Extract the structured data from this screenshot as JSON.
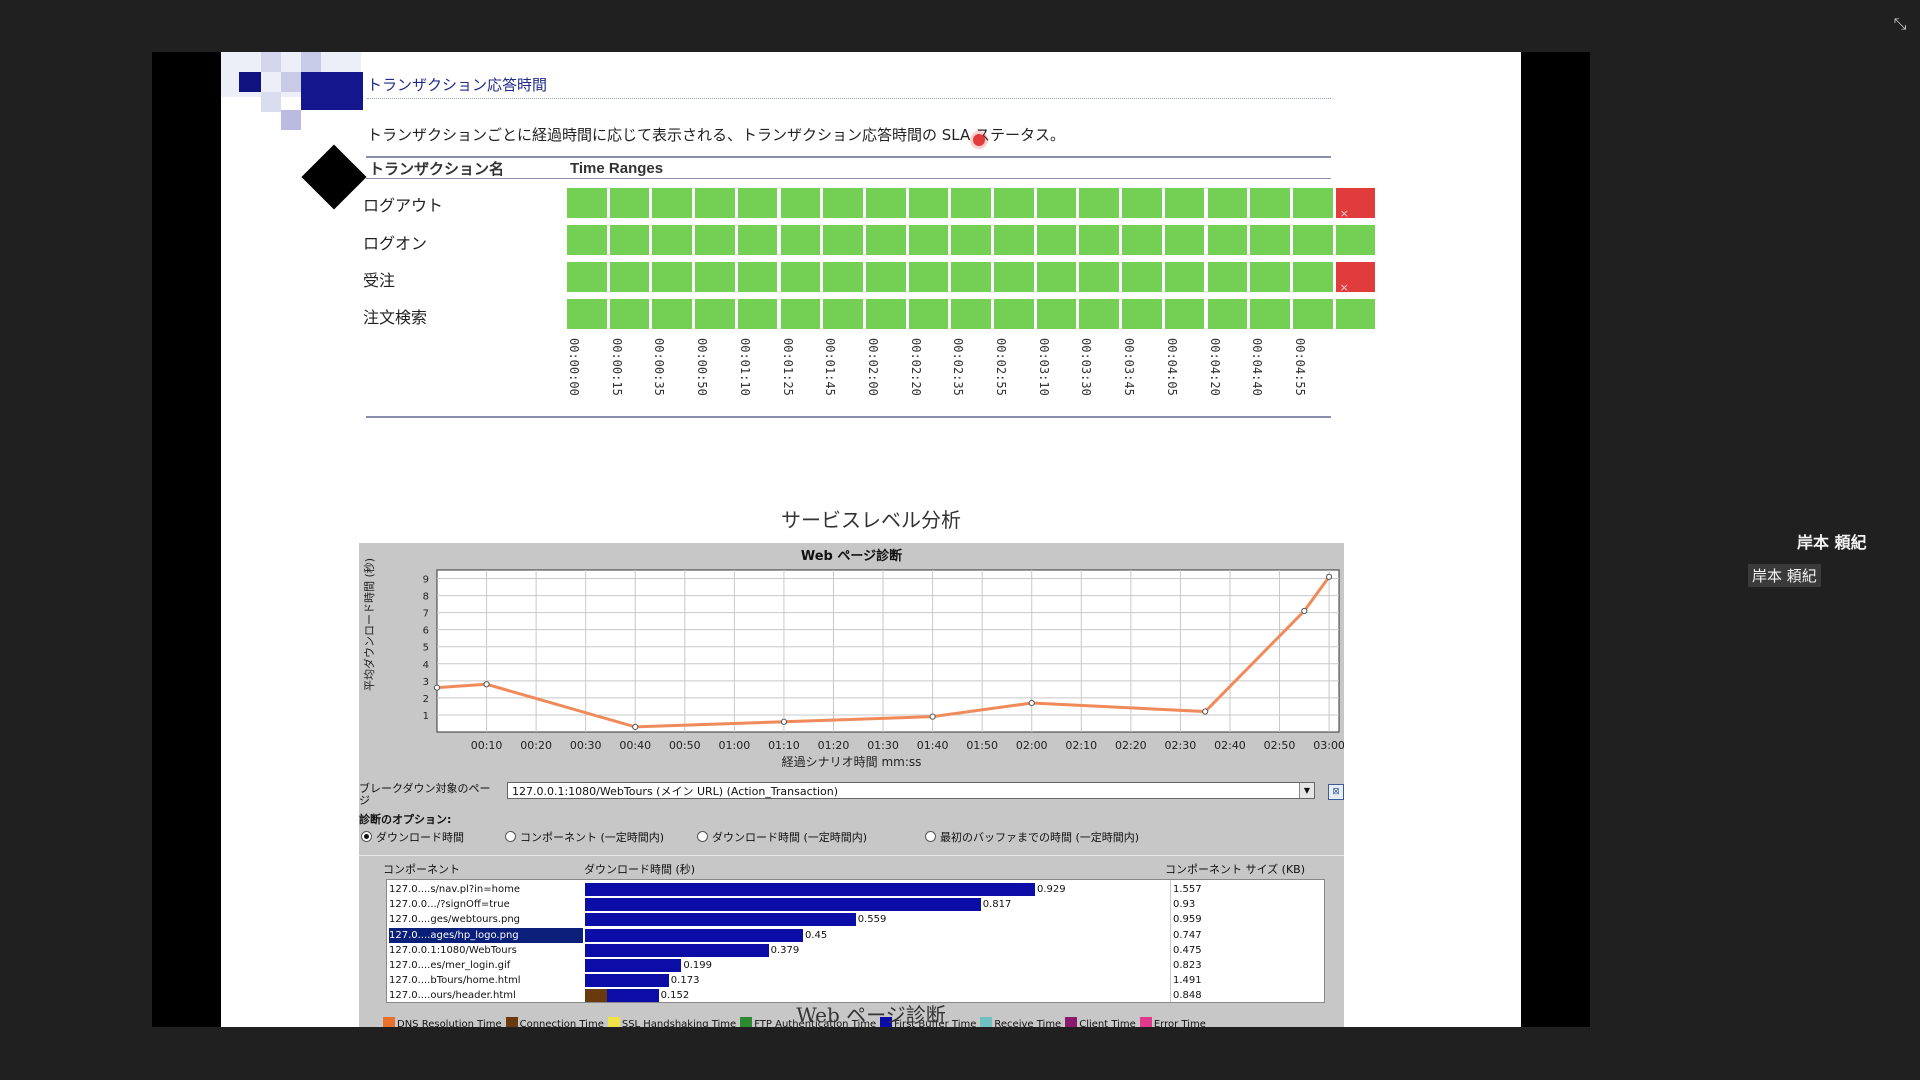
{
  "window": {
    "minimize_icon": "compress-icon",
    "minimize_glyph": "⤡"
  },
  "slide": {
    "title": "トランザクション応答時間",
    "description": "トランザクションごとに経過時間に応じて表示される、トランザクション応答時間の SLA ステータス。",
    "table": {
      "col_transaction": "トランザクション名",
      "col_time_ranges": "Time Ranges",
      "rows": [
        {
          "name": "ログアウト",
          "status": [
            "ok",
            "ok",
            "ok",
            "ok",
            "ok",
            "ok",
            "ok",
            "ok",
            "ok",
            "ok",
            "ok",
            "ok",
            "ok",
            "ok",
            "ok",
            "ok",
            "ok",
            "ok",
            "fail"
          ]
        },
        {
          "name": "ログオン",
          "status": [
            "ok",
            "ok",
            "ok",
            "ok",
            "ok",
            "ok",
            "ok",
            "ok",
            "ok",
            "ok",
            "ok",
            "ok",
            "ok",
            "ok",
            "ok",
            "ok",
            "ok",
            "ok",
            "ok"
          ]
        },
        {
          "name": "受注",
          "status": [
            "ok",
            "ok",
            "ok",
            "ok",
            "ok",
            "ok",
            "ok",
            "ok",
            "ok",
            "ok",
            "ok",
            "ok",
            "ok",
            "ok",
            "ok",
            "ok",
            "ok",
            "ok",
            "fail"
          ]
        },
        {
          "name": "注文検索",
          "status": [
            "ok",
            "ok",
            "ok",
            "ok",
            "ok",
            "ok",
            "ok",
            "ok",
            "ok",
            "ok",
            "ok",
            "ok",
            "ok",
            "ok",
            "ok",
            "ok",
            "ok",
            "ok",
            "ok"
          ]
        }
      ],
      "time_labels": [
        "00:00:00",
        "00:00:15",
        "00:00:35",
        "00:00:50",
        "00:01:10",
        "00:01:25",
        "00:01:45",
        "00:02:00",
        "00:02:20",
        "00:02:35",
        "00:02:55",
        "00:03:10",
        "00:03:30",
        "00:03:45",
        "00:04:05",
        "00:04:20",
        "00:04:40",
        "00:04:55"
      ]
    },
    "sla_heading": "サービスレベル分析",
    "web_caption": "Web ページ診断",
    "colors": {
      "ok": "#73d054",
      "fail": "#e03c3c",
      "bar": "#0c0ca6",
      "line": "#f08a5a"
    }
  },
  "diagnostics": {
    "breakdown_label": "ブレークダウン対象のページ",
    "url_value": "127.0.0.1:1080/WebTours (メイン URL) (Action_Transaction)",
    "select_arrow": "▼",
    "select_icon": "⊠",
    "options_title": "診断のオプション:",
    "options": [
      {
        "label": "ダウンロード時間",
        "selected": true
      },
      {
        "label": "コンポーネント (一定時間内)",
        "selected": false
      },
      {
        "label": "ダウンロード時間 (一定時間内)",
        "selected": false
      },
      {
        "label": "最初のバッファまでの時間 (一定時間内)",
        "selected": false
      }
    ],
    "headers": {
      "component": "コンポーネント",
      "download": "ダウンロード時間 (秒)",
      "size": "コンポーネント サイズ (KB)"
    },
    "rows": [
      {
        "name": "127.0....s/nav.pl?in=home",
        "time": 0.929,
        "time_label": "0.929",
        "size": "1.557"
      },
      {
        "name": "127.0.0.../?signOff=true",
        "time": 0.817,
        "time_label": "0.817",
        "size": "0.93"
      },
      {
        "name": "127.0....ges/webtours.png",
        "time": 0.559,
        "time_label": "0.559",
        "size": "0.959"
      },
      {
        "name": "127.0....ages/hp_logo.png",
        "time": 0.45,
        "time_label": "0.45",
        "size": "0.747",
        "selected": true
      },
      {
        "name": "127.0.0.1:1080/WebTours",
        "time": 0.379,
        "time_label": "0.379",
        "size": "0.475"
      },
      {
        "name": "127.0....es/mer_login.gif",
        "time": 0.199,
        "time_label": "0.199",
        "size": "0.823"
      },
      {
        "name": "127.0....bTours/home.html",
        "time": 0.173,
        "time_label": "0.173",
        "size": "1.491"
      },
      {
        "name": "127.0....ours/header.html",
        "time": 0.152,
        "time_label": "0.152",
        "size": "0.848",
        "brown_part": 0.045
      }
    ],
    "legend": [
      {
        "label": "DNS Resolution Time",
        "color": "#e8702a"
      },
      {
        "label": "Connection Time",
        "color": "#6b3a0c"
      },
      {
        "label": "SSL Handshaking Time",
        "color": "#f2e24a"
      },
      {
        "label": "FTP Authentication Time",
        "color": "#2e8a2e"
      },
      {
        "label": "First Buffer Time",
        "color": "#0c0ca6"
      },
      {
        "label": "Receive Time",
        "color": "#6fc0c0"
      },
      {
        "label": "Client Time",
        "color": "#8a1a6a"
      },
      {
        "label": "Error Time",
        "color": "#e03a8a"
      }
    ]
  },
  "chart_data": {
    "type": "line",
    "title": "Web ページ診断",
    "xlabel": "経過シナリオ時間 mm:ss",
    "ylabel": "平均ダウンロード時間 (秒)",
    "x_seconds": [
      0,
      10,
      40,
      70,
      100,
      120,
      155,
      175,
      180
    ],
    "y": [
      2.6,
      2.8,
      0.3,
      0.6,
      0.9,
      1.7,
      1.2,
      7.1,
      9.1
    ],
    "xlim": [
      0,
      182
    ],
    "ylim": [
      0,
      9.5
    ],
    "x_ticks_seconds": [
      10,
      20,
      30,
      40,
      50,
      60,
      70,
      80,
      90,
      100,
      110,
      120,
      130,
      140,
      150,
      160,
      170,
      180
    ],
    "x_tick_labels": [
      "00:10",
      "00:20",
      "00:30",
      "00:40",
      "00:50",
      "01:00",
      "01:10",
      "01:20",
      "01:30",
      "01:40",
      "01:50",
      "02:00",
      "02:10",
      "02:20",
      "02:30",
      "02:40",
      "02:50",
      "03:00"
    ],
    "y_ticks": [
      1,
      2,
      3,
      4,
      5,
      6,
      7,
      8,
      9
    ],
    "grid": true
  },
  "presenter": {
    "name": "岸本 頼紀",
    "tag": "岸本 頼紀"
  }
}
